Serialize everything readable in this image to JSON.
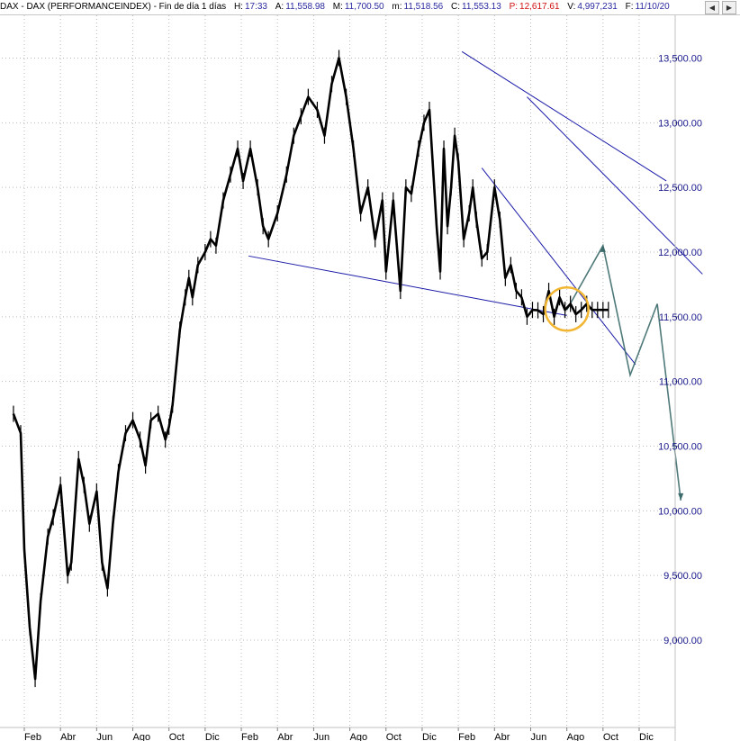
{
  "header": {
    "symbol": "DAX - DAX (PERFORMANCEINDEX) - Fin de día 1 días",
    "h_label": "H:",
    "h_value": "17:33",
    "a_label": "A:",
    "a_value": "11,558.98",
    "m_label": "M:",
    "m_value": "11,700.50",
    "low_label": "m:",
    "low_value": "11,518.56",
    "c_label": "C:",
    "c_value": "11,553.13",
    "p_label": "P:",
    "p_value": "12,617.61",
    "v_label": "V:",
    "v_value": "4,997,231",
    "f_label": "F:",
    "f_value": "11/10/20"
  },
  "colors": {
    "price": "#000000",
    "trendline": "#1a1aa8",
    "projection": "#3d6b6b",
    "highlight_circle": "#f2b632",
    "axis_text": "#1a1a8c"
  },
  "chart_data": {
    "type": "line",
    "title": "",
    "xlabel": "",
    "ylabel": "",
    "y_axis_side": "right",
    "ylim": [
      8500,
      13700
    ],
    "yticks": [
      9000,
      9500,
      10000,
      10500,
      11000,
      11500,
      12000,
      12500,
      13000,
      13500
    ],
    "ytick_labels": [
      "9,000.00",
      "9,500.00",
      "10,000.00",
      "10,500.00",
      "11,000.00",
      "11,500.00",
      "12,000.00",
      "12,500.00",
      "13,000.00",
      "13,500.00"
    ],
    "xlim": [
      0,
      44
    ],
    "x_unit": "months (0 = start of Feb 2016)",
    "xticks": [
      0,
      2,
      4,
      6,
      8,
      10,
      12,
      14,
      16,
      18,
      20,
      22,
      24,
      26,
      28,
      30,
      32,
      34
    ],
    "xtick_labels": [
      "Feb",
      "Abr",
      "Jun",
      "Ago",
      "Oct",
      "Dic",
      "Feb",
      "Abr",
      "Jun",
      "Ago",
      "Oct",
      "Dic",
      "Feb",
      "Abr",
      "Jun",
      "Ago",
      "Oct",
      "Dic"
    ],
    "series": [
      {
        "kind": "price",
        "x": [
          -0.6,
          -0.2,
          0.0,
          0.3,
          0.6,
          0.9,
          1.3,
          1.6,
          2.0,
          2.4,
          2.6,
          3.0,
          3.3,
          3.6,
          4.0,
          4.3,
          4.6,
          4.9,
          5.2,
          5.6,
          6.0,
          6.4,
          6.7,
          7.0,
          7.4,
          7.8,
          8.0,
          8.2,
          8.6,
          8.9,
          9.1,
          9.3,
          9.6,
          10.0,
          10.3,
          10.6,
          11.0,
          11.4,
          11.8,
          12.1,
          12.5,
          12.9,
          13.2,
          13.5,
          14.0,
          14.5,
          14.9,
          15.3,
          15.7,
          16.2,
          16.6,
          17.0,
          17.4,
          17.8,
          18.2,
          18.6,
          19.0,
          19.4,
          19.8,
          20.0,
          20.4,
          20.8,
          21.1,
          21.4,
          21.8,
          22.1,
          22.4,
          22.6,
          22.8,
          23.0,
          23.2,
          23.4,
          23.6,
          23.8,
          24.0,
          24.3,
          24.6,
          24.8,
          25.0,
          25.3,
          25.6,
          26.0,
          26.3,
          26.6,
          26.9,
          27.2,
          27.5,
          27.8,
          28.1,
          28.4,
          28.7,
          29.0,
          29.3,
          29.6,
          29.9,
          30.2,
          30.5,
          30.8,
          31.1,
          31.4,
          31.7,
          32.0,
          32.3
        ],
        "values": [
          10750,
          10600,
          9700,
          9100,
          8700,
          9300,
          9800,
          9950,
          10200,
          9500,
          9600,
          10400,
          10200,
          9900,
          10150,
          9600,
          9400,
          9900,
          10300,
          10600,
          10700,
          10550,
          10350,
          10700,
          10750,
          10550,
          10650,
          10820,
          11400,
          11650,
          11800,
          11650,
          11900,
          12000,
          12100,
          12050,
          12400,
          12600,
          12800,
          12550,
          12800,
          12500,
          12200,
          12100,
          12300,
          12600,
          12900,
          13050,
          13200,
          13100,
          12900,
          13300,
          13500,
          13200,
          12800,
          12300,
          12500,
          12100,
          12400,
          11850,
          12400,
          11700,
          12500,
          12450,
          12800,
          13000,
          13100,
          12650,
          12200,
          11850,
          12800,
          12200,
          12500,
          12900,
          12700,
          12100,
          12300,
          12500,
          12250,
          11950,
          12000,
          12500,
          12250,
          11800,
          11900,
          11700,
          11650,
          11500,
          11553,
          11550,
          11520,
          11700,
          11500,
          11650,
          11553,
          11600,
          11520,
          11553,
          11600,
          11553,
          11553,
          11553,
          11553
        ]
      },
      {
        "kind": "trendline",
        "segments": [
          {
            "x": [
              12.4,
              30.0
            ],
            "values": [
              11970,
              11510
            ]
          },
          {
            "x": [
              24.2,
              35.5
            ],
            "values": [
              13550,
              12550
            ]
          },
          {
            "x": [
              27.8,
              37.5
            ],
            "values": [
              13200,
              11830
            ]
          },
          {
            "x": [
              25.3,
              33.8
            ],
            "values": [
              12650,
              11130
            ]
          }
        ]
      },
      {
        "kind": "projection",
        "x": [
          30.0,
          32.0,
          33.5,
          35.0
        ],
        "values": [
          11553,
          12050,
          11050,
          11600
        ],
        "x2": [
          35.0,
          36.3
        ],
        "values2": [
          11600,
          10080
        ]
      },
      {
        "kind": "highlight",
        "x": [
          30.0
        ],
        "values": [
          11560
        ]
      }
    ]
  }
}
